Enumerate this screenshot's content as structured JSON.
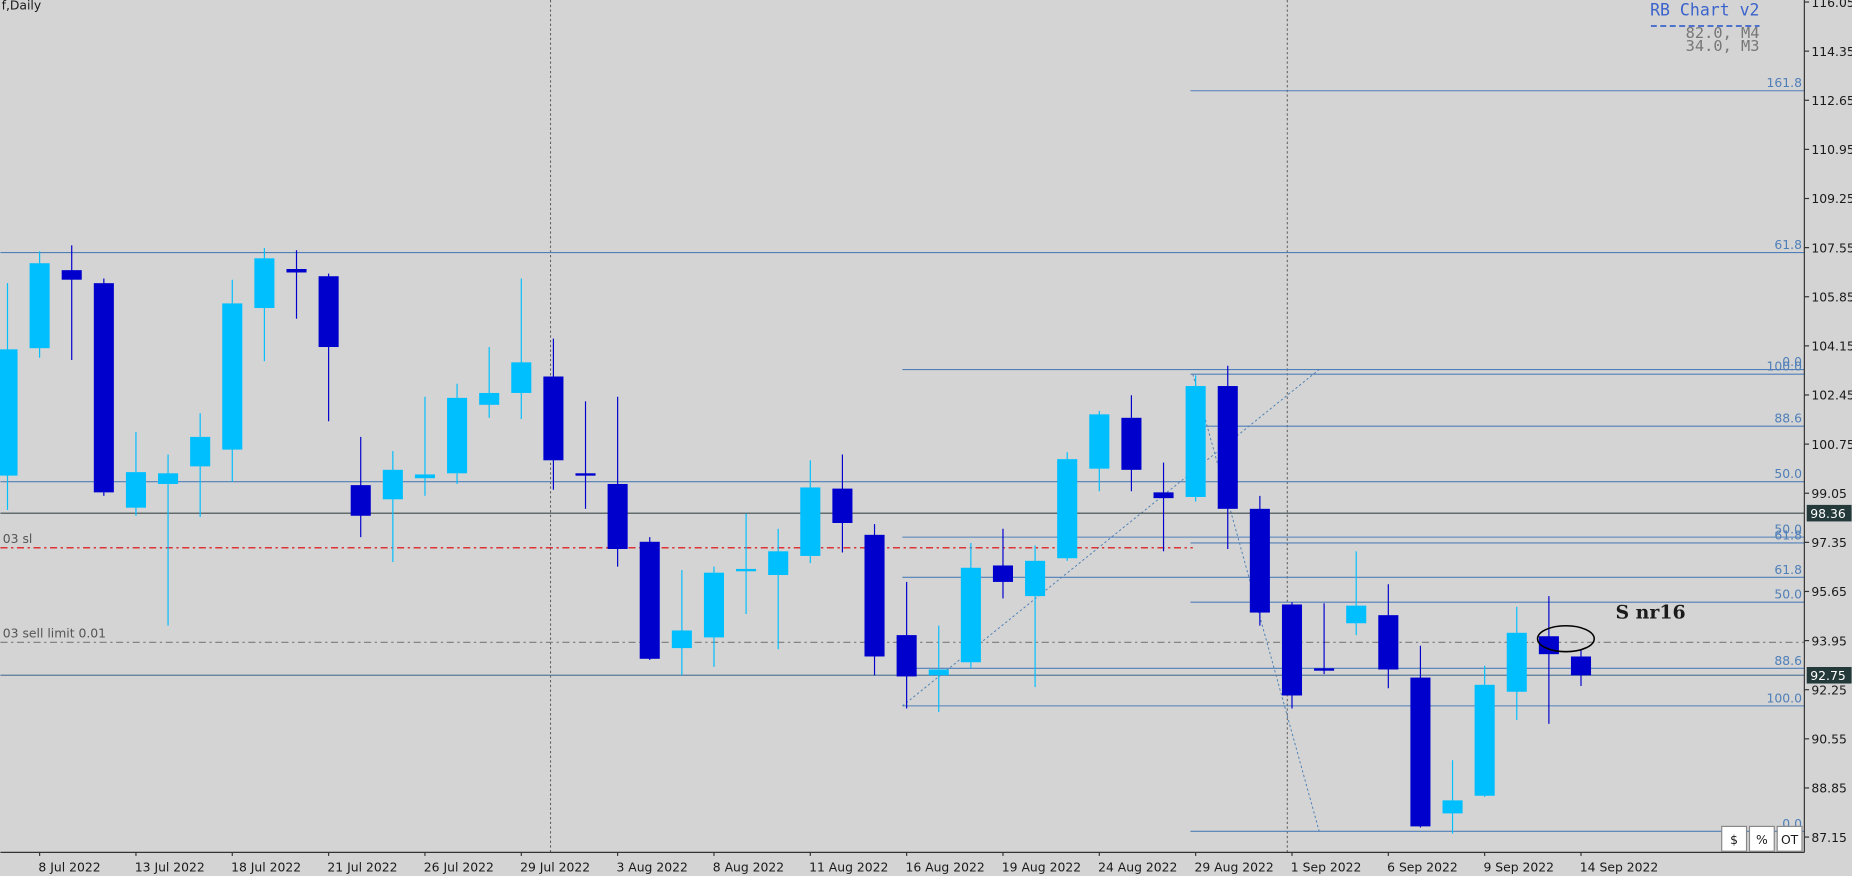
{
  "chart_data": {
    "type": "candlestick",
    "title": "f,Daily",
    "categories": [
      null,
      "8 Jul 2022",
      null,
      null,
      "13 Jul 2022",
      null,
      null,
      "18 Jul 2022",
      null,
      null,
      "21 Jul 2022",
      null,
      null,
      "26 Jul 2022",
      null,
      null,
      "29 Jul 2022",
      null,
      null,
      "3 Aug 2022",
      null,
      null,
      "8 Aug 2022",
      null,
      null,
      "11 Aug 2022",
      null,
      null,
      "16 Aug 2022",
      null,
      null,
      "19 Aug 2022",
      null,
      null,
      "24 Aug 2022",
      null,
      null,
      "29 Aug 2022",
      null,
      null,
      "1 Sep 2022",
      null,
      null,
      "6 Sep 2022",
      null,
      null,
      "9 Sep 2022",
      null,
      null,
      "14 Sep 2022"
    ],
    "open": [
      99.66,
      104.07,
      106.77,
      106.32,
      98.55,
      99.37,
      99.98,
      100.56,
      105.46,
      106.81,
      106.56,
      99.33,
      98.84,
      99.57,
      99.74,
      102.11,
      102.52,
      103.09,
      99.74,
      99.37,
      97.37,
      93.69,
      94.06,
      96.35,
      96.22,
      96.88,
      99.21,
      97.61,
      94.14,
      92.75,
      93.2,
      96.55,
      95.49,
      96.8,
      99.9,
      101.66,
      99.08,
      98.92,
      102.76,
      98.51,
      95.2,
      92.99,
      94.55,
      94.83,
      92.67,
      87.97,
      88.58,
      92.18,
      94.1,
      93.4
    ],
    "high": [
      106.32,
      107.42,
      107.63,
      106.48,
      101.17,
      100.39,
      101.82,
      106.44,
      107.54,
      107.46,
      106.65,
      101.0,
      100.51,
      102.39,
      102.84,
      104.11,
      106.48,
      104.4,
      102.23,
      102.39,
      97.53,
      96.39,
      96.51,
      98.35,
      97.82,
      100.19,
      100.39,
      97.98,
      95.98,
      94.47,
      97.33,
      97.82,
      97.24,
      100.47,
      101.9,
      102.44,
      100.11,
      103.13,
      103.46,
      98.96,
      95.28,
      95.24,
      97.04,
      95.9,
      93.77,
      89.81,
      93.08,
      95.12,
      95.49,
      93.65
    ],
    "low": [
      98.47,
      103.74,
      103.66,
      98.96,
      98.27,
      94.47,
      98.23,
      99.45,
      103.62,
      105.09,
      101.54,
      97.53,
      96.67,
      98.96,
      99.37,
      101.66,
      101.62,
      99.17,
      98.51,
      96.51,
      93.28,
      92.75,
      93.04,
      94.87,
      93.65,
      96.63,
      97.0,
      92.75,
      91.6,
      91.48,
      92.99,
      95.41,
      92.34,
      96.71,
      99.12,
      99.12,
      97.04,
      98.76,
      97.12,
      94.47,
      91.6,
      92.79,
      94.14,
      92.3,
      87.48,
      87.27,
      88.54,
      91.2,
      91.07,
      92.38
    ],
    "close": [
      104.03,
      107.01,
      106.44,
      99.08,
      99.78,
      99.74,
      101.0,
      105.62,
      107.18,
      106.69,
      104.11,
      98.27,
      99.86,
      99.7,
      102.35,
      102.52,
      103.58,
      100.19,
      99.66,
      97.12,
      93.32,
      94.3,
      96.3,
      96.43,
      97.04,
      99.25,
      98.02,
      93.4,
      92.71,
      92.95,
      96.47,
      95.98,
      96.71,
      100.23,
      101.78,
      99.86,
      98.88,
      102.76,
      98.51,
      94.92,
      92.05,
      92.95,
      95.16,
      92.95,
      87.52,
      88.42,
      92.42,
      94.22,
      93.48,
      92.75
    ],
    "up_color": "#00bfff",
    "down_color": "#0000cd",
    "ylim": [
      86.62,
      116.12
    ],
    "yticks": [
      116.05,
      114.35,
      112.65,
      110.95,
      109.25,
      107.55,
      105.85,
      104.15,
      102.45,
      100.75,
      99.05,
      97.35,
      95.65,
      93.95,
      92.25,
      90.55,
      88.85,
      87.15
    ],
    "grid": false,
    "levels": [
      {
        "price": 112.98,
        "label": "161.8"
      },
      {
        "price": 107.38,
        "label": "61.8"
      },
      {
        "price": 103.33,
        "label": "0.0"
      },
      {
        "price": 103.17,
        "label": "100.0"
      },
      {
        "price": 101.37,
        "label": "88.6"
      },
      {
        "price": 99.45,
        "label": "50.0"
      },
      {
        "price": 97.53,
        "label": "50.0"
      },
      {
        "price": 97.33,
        "label": "61.8"
      },
      {
        "price": 96.14,
        "label": "61.8"
      },
      {
        "price": 95.28,
        "label": "50.0"
      },
      {
        "price": 92.99,
        "label": "88.6"
      },
      {
        "price": 91.69,
        "label": "100.0"
      },
      {
        "price": 87.35,
        "label": "0.0"
      }
    ],
    "orders": [
      {
        "price": 97.16,
        "label": "03 sl",
        "color": "#e00000"
      },
      {
        "price": 93.89,
        "label": "03 sell limit 0.01",
        "color": "#7a7a7a"
      }
    ],
    "marked_price": 98.36,
    "current_price": 92.75,
    "annotation": "S nr16",
    "indicator": {
      "name": "RB Chart v2",
      "lines": [
        "82.0, M4",
        "34.0, M3"
      ]
    },
    "buttons": [
      "$",
      "%",
      "OT"
    ]
  }
}
